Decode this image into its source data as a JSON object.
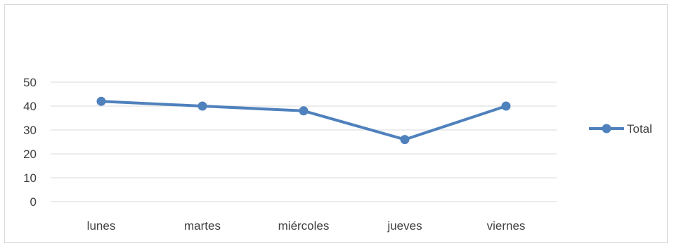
{
  "chart_data": {
    "type": "line",
    "categories": [
      "lunes",
      "martes",
      "miércoles",
      "jueves",
      "viernes"
    ],
    "series": [
      {
        "name": "Total",
        "values": [
          42,
          40,
          38,
          26,
          40
        ]
      }
    ],
    "yticks": [
      "0",
      "10",
      "20",
      "30",
      "40",
      "50"
    ],
    "ylim": [
      0,
      50
    ],
    "grid": true,
    "legend_position": "right",
    "colors": {
      "series": "#4f81bd",
      "grid": "#d9d9d9",
      "text": "#404040"
    }
  }
}
